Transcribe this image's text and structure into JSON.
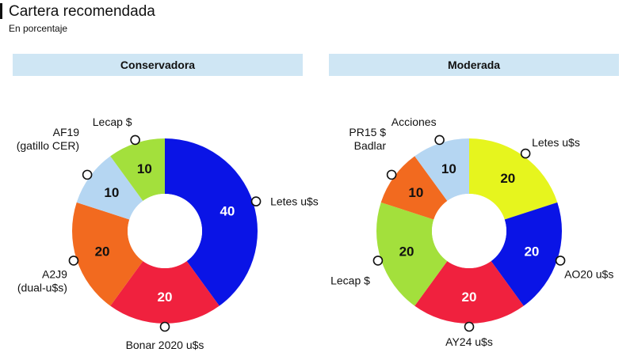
{
  "title": "Cartera recomendada",
  "subtitle": "En porcentaje",
  "chart_data": [
    {
      "type": "pie",
      "title": "Conservadora",
      "unit": "%",
      "slices": [
        {
          "label": "Letes u$s",
          "lines": [
            "Letes u$s"
          ],
          "value": 40,
          "color": "#0a14e6",
          "value_color": "#ffffff"
        },
        {
          "label": "Bonar 2020 u$s",
          "lines": [
            "Bonar 2020 u$s"
          ],
          "value": 20,
          "color": "#f0213e",
          "value_color": "#ffffff"
        },
        {
          "label": "A2J9 (dual-u$s)",
          "lines": [
            "A2J9",
            "(dual-u$s)"
          ],
          "value": 20,
          "color": "#f26a1f",
          "value_color": "#111111"
        },
        {
          "label": "AF19 (gatillo CER)",
          "lines": [
            "AF19",
            "(gatillo CER)"
          ],
          "value": 10,
          "color": "#b5d6f2",
          "value_color": "#111111"
        },
        {
          "label": "Lecap $",
          "lines": [
            "Lecap $"
          ],
          "value": 10,
          "color": "#a3e03c",
          "value_color": "#111111"
        }
      ]
    },
    {
      "type": "pie",
      "title": "Moderada",
      "unit": "%",
      "slices": [
        {
          "label": "Letes u$s",
          "lines": [
            "Letes u$s"
          ],
          "value": 20,
          "color": "#e6f51e",
          "value_color": "#111111"
        },
        {
          "label": "AO20 u$s",
          "lines": [
            "AO20 u$s"
          ],
          "value": 20,
          "color": "#0a14e6",
          "value_color": "#ffffff"
        },
        {
          "label": "AY24 u$s",
          "lines": [
            "AY24 u$s"
          ],
          "value": 20,
          "color": "#f0213e",
          "value_color": "#ffffff"
        },
        {
          "label": "Lecap $",
          "lines": [
            "Lecap $"
          ],
          "value": 20,
          "color": "#a3e03c",
          "value_color": "#111111"
        },
        {
          "label": "PR15 $ Badlar",
          "lines": [
            "PR15 $",
            "Badlar"
          ],
          "value": 10,
          "color": "#f26a1f",
          "value_color": "#111111"
        },
        {
          "label": "Acciones",
          "lines": [
            "Acciones"
          ],
          "value": 10,
          "color": "#b5d6f2",
          "value_color": "#111111"
        }
      ]
    }
  ]
}
